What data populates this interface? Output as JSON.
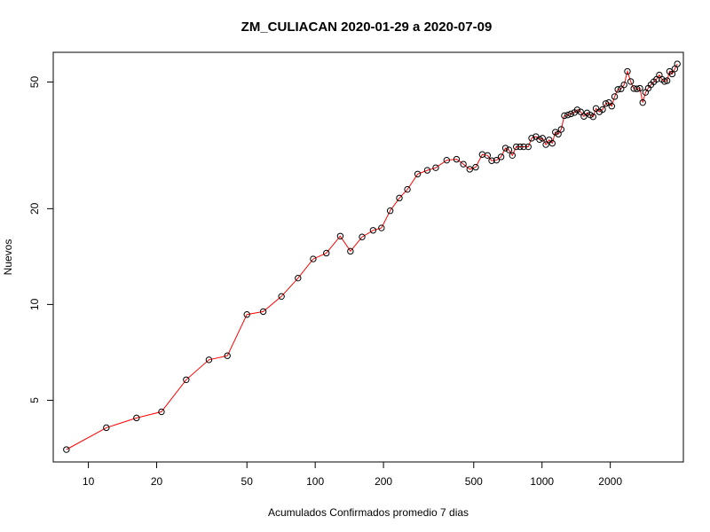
{
  "chart_data": {
    "type": "scatter",
    "title": "ZM_CULIACAN 2020-01-29 a 2020-07-09",
    "xlabel": "Acumulados Confirmados promedio  7  dias",
    "ylabel": "Nuevos",
    "x_scale": "log",
    "y_scale": "log",
    "xlim": [
      7,
      4200
    ],
    "ylim": [
      3.2,
      62
    ],
    "x_ticks": [
      10,
      20,
      50,
      100,
      200,
      500,
      1000,
      2000
    ],
    "x_tick_labels": [
      "10",
      "20",
      "50",
      "100",
      "200",
      "500",
      "1000",
      "2000"
    ],
    "y_ticks": [
      5,
      10,
      20,
      50
    ],
    "y_tick_labels": [
      "5",
      "10",
      "20",
      "50"
    ],
    "grid": false,
    "line_color": "#ff0000",
    "point_color": "#000000",
    "series": [
      {
        "x": [
          8,
          12,
          16.3,
          21,
          27,
          34,
          41,
          50,
          59,
          71,
          84,
          98,
          112,
          129,
          143,
          161,
          180,
          196,
          214,
          235,
          255,
          283,
          312,
          340,
          380,
          420,
          450,
          480,
          510,
          545,
          575,
          600,
          630,
          660,
          690,
          715,
          740,
          770,
          800,
          830,
          870,
          900,
          940,
          975,
          1005,
          1040,
          1075,
          1110,
          1145,
          1180,
          1215,
          1255,
          1300,
          1340,
          1390,
          1430,
          1480,
          1530,
          1580,
          1630,
          1680,
          1730,
          1790,
          1850,
          1910,
          1970,
          2030,
          2090,
          2160,
          2230,
          2300,
          2380,
          2460,
          2540,
          2620,
          2700,
          2780,
          2860,
          2940,
          3020,
          3110,
          3200,
          3290,
          3380,
          3470,
          3560,
          3650,
          3750,
          3850,
          3950
        ],
        "y": [
          3.5,
          4.1,
          4.4,
          4.6,
          5.8,
          6.7,
          6.9,
          9.3,
          9.5,
          10.6,
          12.1,
          13.9,
          14.5,
          16.4,
          14.7,
          16.3,
          17.1,
          17.4,
          19.7,
          21.6,
          23.0,
          25.7,
          26.4,
          26.9,
          28.4,
          28.6,
          27.6,
          26.6,
          27.0,
          29.6,
          29.4,
          28.3,
          28.4,
          29.1,
          31.0,
          30.6,
          29.4,
          31.3,
          31.3,
          31.3,
          31.3,
          33.3,
          33.7,
          33.0,
          33.3,
          31.8,
          32.9,
          32.1,
          34.8,
          34.3,
          35.5,
          39.2,
          39.4,
          39.7,
          40.1,
          40.9,
          40.3,
          39.0,
          40.0,
          39.4,
          38.9,
          41.3,
          40.3,
          41.0,
          42.8,
          43.1,
          42.0,
          45.0,
          47.4,
          47.6,
          49.0,
          54.0,
          50.2,
          47.7,
          47.6,
          47.8,
          43.1,
          46.4,
          47.8,
          49.0,
          50.1,
          51.0,
          52.6,
          51.0,
          50.2,
          50.5,
          54.0,
          53.0,
          55.0,
          57.0
        ]
      }
    ]
  }
}
